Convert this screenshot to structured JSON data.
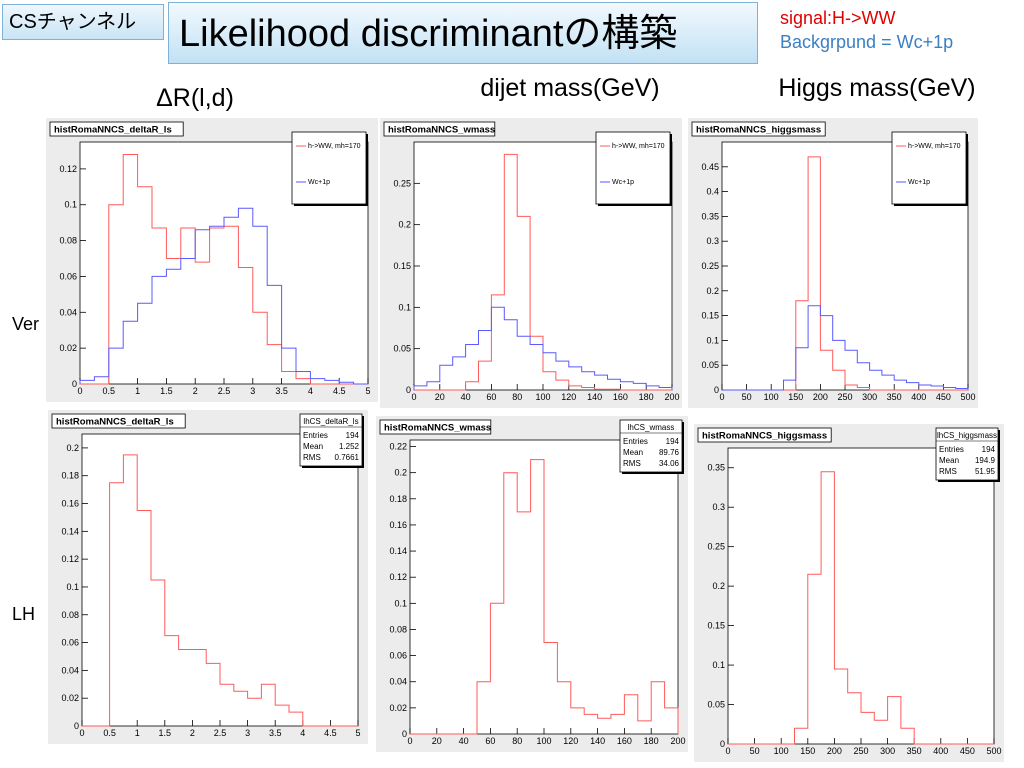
{
  "header": {
    "tag": "CSチャンネル",
    "title": "Likelihood discriminantの構築",
    "signal_note": "signal:H->WW",
    "background_note": "Backgrpund = Wc+1p",
    "signal_color": "#e00000",
    "background_color": "#3b7fc4"
  },
  "columns": {
    "deltaR": "ΔR(l,d)",
    "dijet": "dijet mass(GeV)",
    "higgs": "Higgs mass(GeV)"
  },
  "rows": {
    "ver": "Ver",
    "lh": "LH"
  },
  "colors": {
    "signal": "#ff5a5a",
    "background": "#5a5aff",
    "panel_bg": "#ececec"
  },
  "chart_data": [
    {
      "type": "area",
      "hist_name": "histRomaNNCS_deltaR_ls",
      "xlim": [
        0,
        5
      ],
      "ylim": [
        0,
        0.135
      ],
      "xticks": [
        "0",
        "0.5",
        "1",
        "1.5",
        "2",
        "2.5",
        "3",
        "3.5",
        "4",
        "4.5",
        "5"
      ],
      "yticks": [
        "0",
        "0.02",
        "0.04",
        "0.06",
        "0.08",
        "0.1",
        "0.12"
      ],
      "legend": [
        "h->WW, mh=170",
        "Wc+1p"
      ],
      "bin_edges": [
        0,
        0.25,
        0.5,
        0.75,
        1.0,
        1.25,
        1.5,
        1.75,
        2.0,
        2.25,
        2.5,
        2.75,
        3.0,
        3.25,
        3.5,
        3.75,
        4.0,
        4.25,
        4.5,
        4.75,
        5.0
      ],
      "series": [
        {
          "name": "h->WW, mh=170",
          "color_key": "signal",
          "values": [
            0,
            0,
            0.1,
            0.128,
            0.11,
            0.087,
            0.07,
            0.087,
            0.068,
            0.087,
            0.088,
            0.065,
            0.04,
            0.022,
            0.007,
            0.003,
            0,
            0,
            0,
            0
          ]
        },
        {
          "name": "Wc+1p",
          "color_key": "background",
          "values": [
            0.002,
            0.004,
            0.02,
            0.035,
            0.045,
            0.06,
            0.064,
            0.07,
            0.086,
            0.088,
            0.093,
            0.098,
            0.088,
            0.055,
            0.02,
            0.007,
            0.003,
            0.002,
            0.001,
            0
          ]
        }
      ]
    },
    {
      "type": "area",
      "hist_name": "histRomaNNCS_wmass",
      "xlim": [
        0,
        200
      ],
      "ylim": [
        0,
        0.3
      ],
      "xticks": [
        "0",
        "20",
        "40",
        "60",
        "80",
        "100",
        "120",
        "140",
        "160",
        "180",
        "200"
      ],
      "yticks": [
        "0",
        "0.05",
        "0.1",
        "0.15",
        "0.2",
        "0.25"
      ],
      "legend": [
        "h->WW, mh=170",
        "Wc+1p"
      ],
      "bin_edges": [
        0,
        10,
        20,
        30,
        40,
        50,
        60,
        70,
        80,
        90,
        100,
        110,
        120,
        130,
        140,
        150,
        160,
        170,
        180,
        190,
        200
      ],
      "series": [
        {
          "name": "h->WW, mh=170",
          "color_key": "signal",
          "values": [
            0,
            0,
            0,
            0,
            0.01,
            0.035,
            0.115,
            0.285,
            0.21,
            0.065,
            0.022,
            0.012,
            0.005,
            0.003,
            0.001,
            0.001,
            0,
            0,
            0,
            0
          ]
        },
        {
          "name": "Wc+1p",
          "color_key": "background",
          "values": [
            0.005,
            0.01,
            0.03,
            0.04,
            0.055,
            0.072,
            0.1,
            0.085,
            0.065,
            0.055,
            0.045,
            0.035,
            0.028,
            0.022,
            0.018,
            0.013,
            0.01,
            0.008,
            0.005,
            0.003
          ]
        }
      ]
    },
    {
      "type": "area",
      "hist_name": "histRomaNNCS_higgsmass",
      "xlim": [
        0,
        500
      ],
      "ylim": [
        0,
        0.5
      ],
      "xticks": [
        "0",
        "50",
        "100",
        "150",
        "200",
        "250",
        "300",
        "350",
        "400",
        "450",
        "500"
      ],
      "yticks": [
        "0",
        "0.05",
        "0.1",
        "0.15",
        "0.2",
        "0.25",
        "0.3",
        "0.35",
        "0.4",
        "0.45"
      ],
      "legend": [
        "h->WW, mh=170",
        "Wc+1p"
      ],
      "bin_edges": [
        0,
        25,
        50,
        75,
        100,
        125,
        150,
        175,
        200,
        225,
        250,
        275,
        300,
        325,
        350,
        375,
        400,
        425,
        450,
        475,
        500
      ],
      "series": [
        {
          "name": "h->WW, mh=170",
          "color_key": "signal",
          "values": [
            0,
            0,
            0,
            0,
            0,
            0,
            0.18,
            0.47,
            0.08,
            0.04,
            0.01,
            0.005,
            0,
            0,
            0,
            0,
            0,
            0,
            0,
            0
          ]
        },
        {
          "name": "Wc+1p",
          "color_key": "background",
          "values": [
            0,
            0,
            0,
            0,
            0,
            0.02,
            0.085,
            0.17,
            0.15,
            0.1,
            0.08,
            0.055,
            0.04,
            0.03,
            0.02,
            0.015,
            0.01,
            0.008,
            0.005,
            0.003
          ]
        }
      ]
    },
    {
      "type": "area",
      "hist_name": "histRomaNNCS_deltaR_ls",
      "xlim": [
        0,
        5
      ],
      "ylim": [
        0,
        0.21
      ],
      "xticks": [
        "0",
        "0.5",
        "1",
        "1.5",
        "2",
        "2.5",
        "3",
        "3.5",
        "4",
        "4.5",
        "5"
      ],
      "yticks": [
        "0",
        "0.02",
        "0.04",
        "0.06",
        "0.08",
        "0.1",
        "0.12",
        "0.14",
        "0.16",
        "0.18",
        "0.2"
      ],
      "stats": {
        "title": "lhCS_deltaR_ls",
        "rows": [
          [
            "Entries",
            "194"
          ],
          [
            "Mean",
            "1.252"
          ],
          [
            "RMS",
            "0.7661"
          ]
        ]
      },
      "bin_edges": [
        0,
        0.25,
        0.5,
        0.75,
        1.0,
        1.25,
        1.5,
        1.75,
        2.0,
        2.25,
        2.5,
        2.75,
        3.0,
        3.25,
        3.5,
        3.75,
        4.0,
        4.25,
        4.5,
        4.75,
        5.0
      ],
      "series": [
        {
          "name": "",
          "color_key": "signal",
          "values": [
            0,
            0,
            0.175,
            0.195,
            0.155,
            0.105,
            0.065,
            0.055,
            0.055,
            0.045,
            0.03,
            0.025,
            0.02,
            0.03,
            0.015,
            0.01,
            0,
            0,
            0,
            0
          ]
        }
      ]
    },
    {
      "type": "area",
      "hist_name": "histRomaNNCS_wmass",
      "xlim": [
        0,
        200
      ],
      "ylim": [
        0,
        0.225
      ],
      "xticks": [
        "0",
        "20",
        "40",
        "60",
        "80",
        "100",
        "120",
        "140",
        "160",
        "180",
        "200"
      ],
      "yticks": [
        "0",
        "0.02",
        "0.04",
        "0.06",
        "0.08",
        "0.1",
        "0.12",
        "0.14",
        "0.16",
        "0.18",
        "0.2",
        "0.22"
      ],
      "stats": {
        "title": "lhCS_wmass",
        "rows": [
          [
            "Entries",
            "194"
          ],
          [
            "Mean",
            "89.76"
          ],
          [
            "RMS",
            "34.06"
          ]
        ]
      },
      "bin_edges": [
        0,
        10,
        20,
        30,
        40,
        50,
        60,
        70,
        80,
        90,
        100,
        110,
        120,
        130,
        140,
        150,
        160,
        170,
        180,
        190,
        200
      ],
      "series": [
        {
          "name": "",
          "color_key": "signal",
          "values": [
            0,
            0,
            0,
            0,
            0,
            0.04,
            0.1,
            0.2,
            0.17,
            0.21,
            0.07,
            0.04,
            0.02,
            0.015,
            0.012,
            0.015,
            0.03,
            0.01,
            0.04,
            0.02
          ]
        }
      ]
    },
    {
      "type": "area",
      "hist_name": "histRomaNNCS_higgsmass",
      "xlim": [
        0,
        500
      ],
      "ylim": [
        0,
        0.375
      ],
      "xticks": [
        "0",
        "50",
        "100",
        "150",
        "200",
        "250",
        "300",
        "350",
        "400",
        "450",
        "500"
      ],
      "yticks": [
        "0",
        "0.05",
        "0.1",
        "0.15",
        "0.2",
        "0.25",
        "0.3",
        "0.35"
      ],
      "stats": {
        "title": "lhCS_higgsmass",
        "rows": [
          [
            "Entries",
            "194"
          ],
          [
            "Mean",
            "194.9"
          ],
          [
            "RMS",
            "51.95"
          ]
        ]
      },
      "bin_edges": [
        0,
        25,
        50,
        75,
        100,
        125,
        150,
        175,
        200,
        225,
        250,
        275,
        300,
        325,
        350,
        375,
        400,
        425,
        450,
        475,
        500
      ],
      "series": [
        {
          "name": "",
          "color_key": "signal",
          "values": [
            0,
            0,
            0,
            0,
            0,
            0.02,
            0.215,
            0.345,
            0.095,
            0.065,
            0.04,
            0.03,
            0.06,
            0.02,
            0,
            0,
            0,
            0,
            0,
            0
          ]
        }
      ]
    }
  ]
}
